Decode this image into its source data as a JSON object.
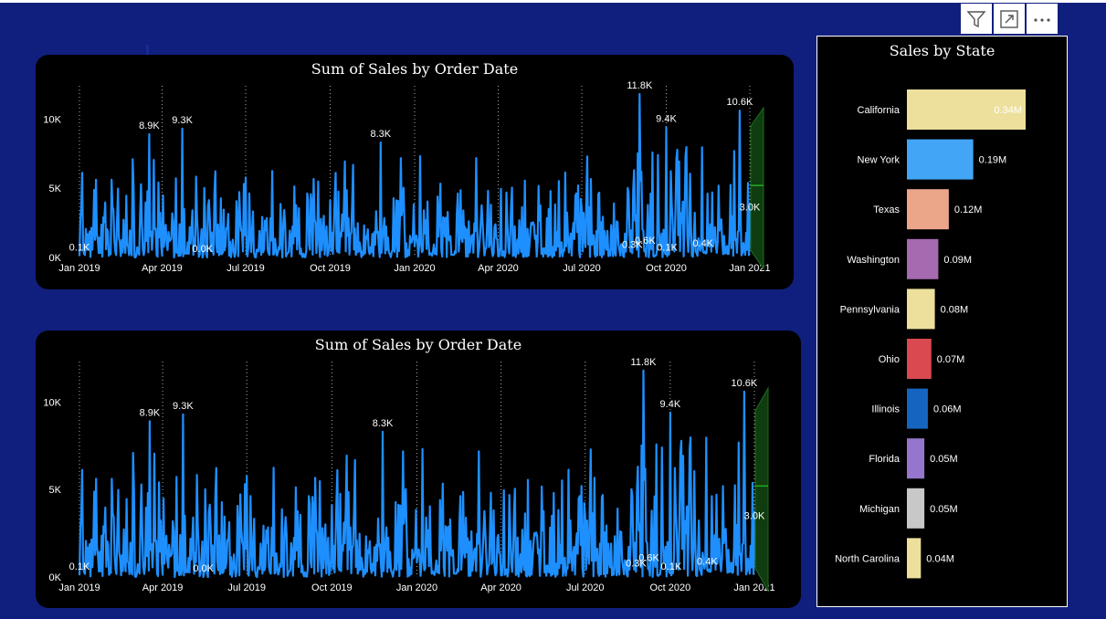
{
  "header_icons": [
    "filter-icon",
    "focus-mode-icon",
    "more-options-icon"
  ],
  "colors": {
    "background": "#101f7e",
    "card": "#000000",
    "line": "#1e8fff",
    "forecast": "#1a5c1a",
    "text": "#ffffff"
  },
  "chart_data": [
    {
      "type": "line",
      "title": "Sum of Sales by Order Date",
      "x_start": "2019-01-01",
      "x_end": "2021-01-01",
      "x_ticks": [
        "Jan 2019",
        "Apr 2019",
        "Jul 2019",
        "Oct 2019",
        "Jan 2020",
        "Apr 2020",
        "Jul 2020",
        "Oct 2020",
        "Jan 2021"
      ],
      "y_ticks": [
        "0K",
        "5K",
        "10K"
      ],
      "ylim": [
        0,
        12000
      ],
      "series": [
        {
          "values_note": "daily sales",
          "color": "#1e8fff"
        }
      ],
      "data_labels": [
        {
          "date": "2019-01-01",
          "value": 100,
          "label": "0.1K"
        },
        {
          "date": "2019-03-18",
          "value": 8900,
          "label": "8.9K"
        },
        {
          "date": "2019-04-23",
          "value": 9300,
          "label": "9.3K"
        },
        {
          "date": "2019-05-15",
          "value": 0,
          "label": "0.0K"
        },
        {
          "date": "2019-11-25",
          "value": 8300,
          "label": "8.3K"
        },
        {
          "date": "2020-09-02",
          "value": 11800,
          "label": "11.8K"
        },
        {
          "date": "2020-08-25",
          "value": 300,
          "label": "0.3K"
        },
        {
          "date": "2020-09-08",
          "value": 600,
          "label": "0.6K"
        },
        {
          "date": "2020-10-01",
          "value": 9400,
          "label": "9.4K"
        },
        {
          "date": "2020-10-02",
          "value": 100,
          "label": "0.1K"
        },
        {
          "date": "2020-11-10",
          "value": 400,
          "label": "0.4K"
        },
        {
          "date": "2020-12-20",
          "value": 10600,
          "label": "10.6K"
        },
        {
          "date": "2020-12-31",
          "value": 3000,
          "label": "3.0K"
        }
      ],
      "forecast": true
    },
    {
      "type": "line",
      "title": "Sum of Sales by Order Date",
      "x_start": "2019-01-01",
      "x_end": "2021-01-01",
      "x_ticks": [
        "Jan 2019",
        "Apr 2019",
        "Jul 2019",
        "Oct 2019",
        "Jan 2020",
        "Apr 2020",
        "Jul 2020",
        "Oct 2020",
        "Jan 2021"
      ],
      "y_ticks": [
        "0K",
        "5K",
        "10K"
      ],
      "ylim": [
        0,
        12000
      ],
      "series": [
        {
          "values_note": "daily sales",
          "color": "#1e8fff"
        }
      ],
      "data_labels": [
        {
          "date": "2019-01-01",
          "value": 100,
          "label": "0.1K"
        },
        {
          "date": "2019-03-18",
          "value": 8900,
          "label": "8.9K"
        },
        {
          "date": "2019-04-23",
          "value": 9300,
          "label": "9.3K"
        },
        {
          "date": "2019-05-15",
          "value": 0,
          "label": "0.0K"
        },
        {
          "date": "2019-11-25",
          "value": 8300,
          "label": "8.3K"
        },
        {
          "date": "2020-09-02",
          "value": 11800,
          "label": "11.8K"
        },
        {
          "date": "2020-08-25",
          "value": 300,
          "label": "0.3K"
        },
        {
          "date": "2020-09-08",
          "value": 600,
          "label": "0.6K"
        },
        {
          "date": "2020-10-01",
          "value": 9400,
          "label": "9.4K"
        },
        {
          "date": "2020-10-02",
          "value": 100,
          "label": "0.1K"
        },
        {
          "date": "2020-11-10",
          "value": 400,
          "label": "0.4K"
        },
        {
          "date": "2020-12-20",
          "value": 10600,
          "label": "10.6K"
        },
        {
          "date": "2020-12-31",
          "value": 3000,
          "label": "3.0K"
        }
      ],
      "forecast": true
    },
    {
      "type": "bar",
      "orientation": "horizontal",
      "title": "Sales by State",
      "categories": [
        "California",
        "New York",
        "Texas",
        "Washington",
        "Pennsylvania",
        "Ohio",
        "Illinois",
        "Florida",
        "Michigan",
        "North Carolina"
      ],
      "values": [
        0.34,
        0.19,
        0.12,
        0.09,
        0.08,
        0.07,
        0.06,
        0.05,
        0.05,
        0.04
      ],
      "value_labels": [
        "0.34M",
        "0.19M",
        "0.12M",
        "0.09M",
        "0.08M",
        "0.07M",
        "0.06M",
        "0.05M",
        "0.05M",
        "0.04M"
      ],
      "unit": "M",
      "colors": [
        "#ede09c",
        "#42a5f5",
        "#eba689",
        "#a56ab0",
        "#ede09c",
        "#d9494f",
        "#1565c0",
        "#9575cd",
        "#c8c8c8",
        "#ede09c"
      ]
    }
  ]
}
